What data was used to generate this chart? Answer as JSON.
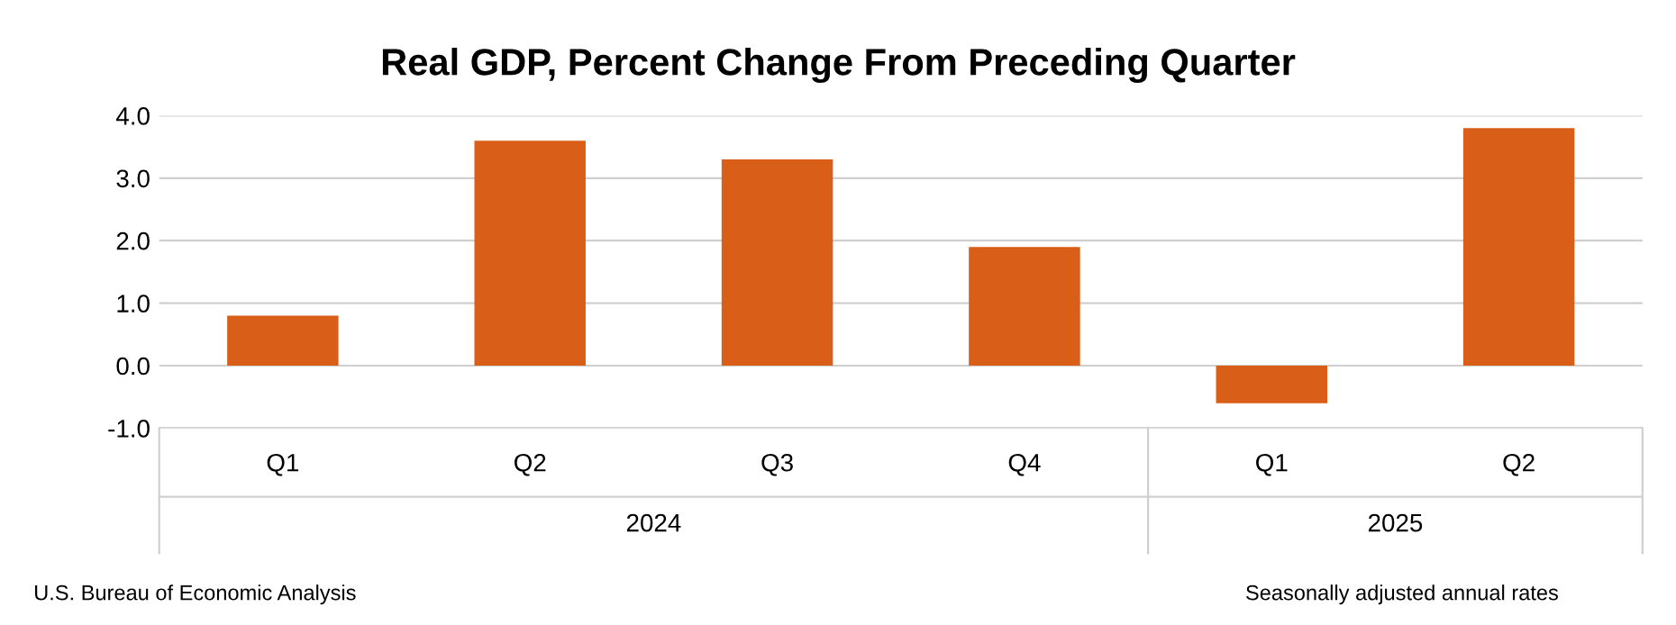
{
  "chart_data": {
    "type": "bar",
    "title": "Real GDP, Percent Change From Preceding Quarter",
    "categories": [
      "Q1",
      "Q2",
      "Q3",
      "Q4",
      "Q1",
      "Q2"
    ],
    "values": [
      0.8,
      3.6,
      3.3,
      1.9,
      -0.6,
      3.8
    ],
    "color": "#d95f18",
    "ylim": [
      -1,
      4
    ],
    "yticks": [
      {
        "value": -1,
        "label": "-1.0"
      },
      {
        "value": 0,
        "label": "0.0"
      },
      {
        "value": 1,
        "label": "1.0"
      },
      {
        "value": 2,
        "label": "2.0"
      },
      {
        "value": 3,
        "label": "3.0"
      },
      {
        "value": 4,
        "label": "4.0"
      }
    ],
    "grid": "y",
    "annotations": [
      "2024",
      "2025",
      "U.S. Bureau of Economic Analysis",
      "Seasonally adjusted annual rates"
    ]
  }
}
